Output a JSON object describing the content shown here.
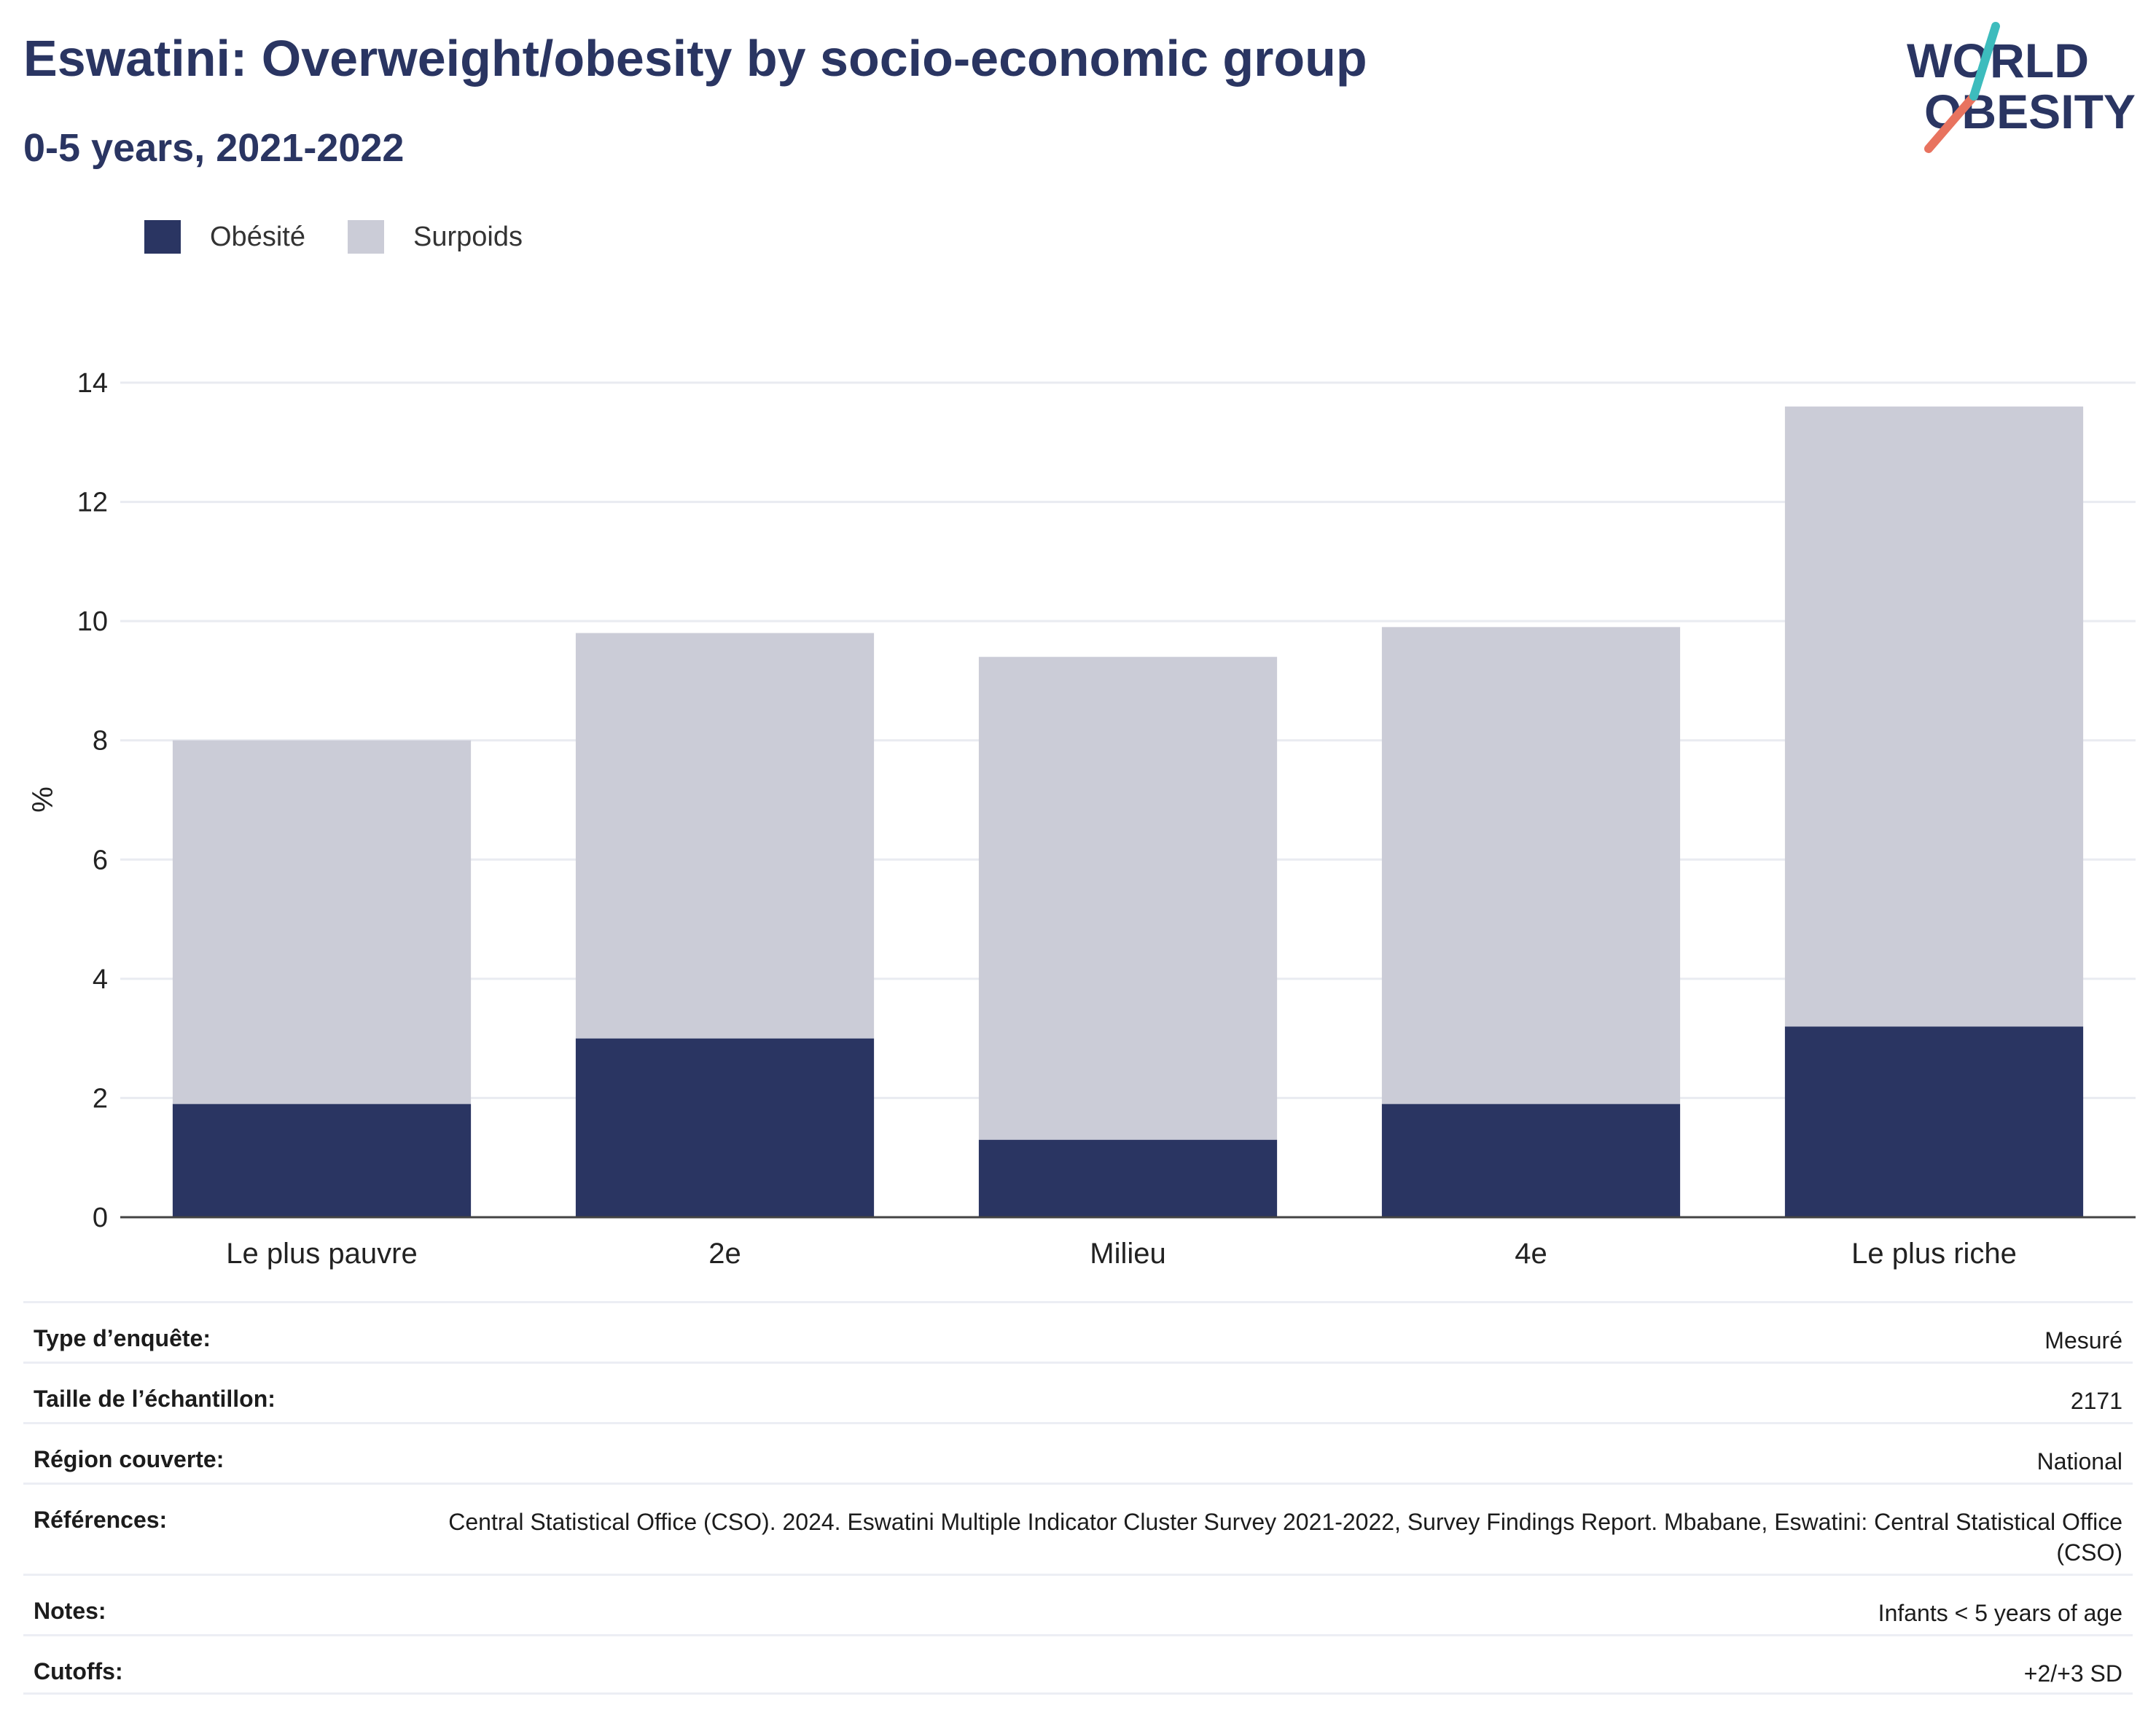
{
  "header": {
    "title": "Eswatini: Overweight/obesity by socio-economic group",
    "subtitle": "0-5 years, 2021-2022"
  },
  "logo": {
    "line1": "WORLD",
    "line2": "OBESITY"
  },
  "colors": {
    "obesite": "#2a3562",
    "surpoids": "#cbccd7",
    "text": "#2a3562"
  },
  "chart_data": {
    "type": "bar",
    "stacked": true,
    "categories": [
      "Le plus pauvre",
      "2e",
      "Milieu",
      "4e",
      "Le plus riche"
    ],
    "series": [
      {
        "name": "Obésité",
        "values": [
          1.9,
          3.0,
          1.3,
          1.9,
          3.2
        ]
      },
      {
        "name": "Surpoids",
        "values": [
          6.1,
          6.8,
          8.1,
          8.0,
          10.4
        ]
      }
    ],
    "ylabel": "%",
    "ylim": [
      0,
      14
    ],
    "yticks": [
      0,
      2,
      4,
      6,
      8,
      10,
      12,
      14
    ],
    "grid": true,
    "legend_position": "top-left"
  },
  "meta": {
    "rows": [
      {
        "label": "Type d’enquête:",
        "value": "Mesuré"
      },
      {
        "label": "Taille de l’échantillon:",
        "value": "2171"
      },
      {
        "label": "Région couverte:",
        "value": "National"
      },
      {
        "label": "Références:",
        "value": "Central Statistical Office (CSO). 2024. Eswatini Multiple Indicator Cluster Survey 2021-2022, Survey Findings Report. Mbabane, Eswatini: Central Statistical Office (CSO)"
      },
      {
        "label": "Notes:",
        "value": "Infants < 5 years of age"
      },
      {
        "label": "Cutoffs:",
        "value": "+2/+3 SD"
      }
    ]
  }
}
